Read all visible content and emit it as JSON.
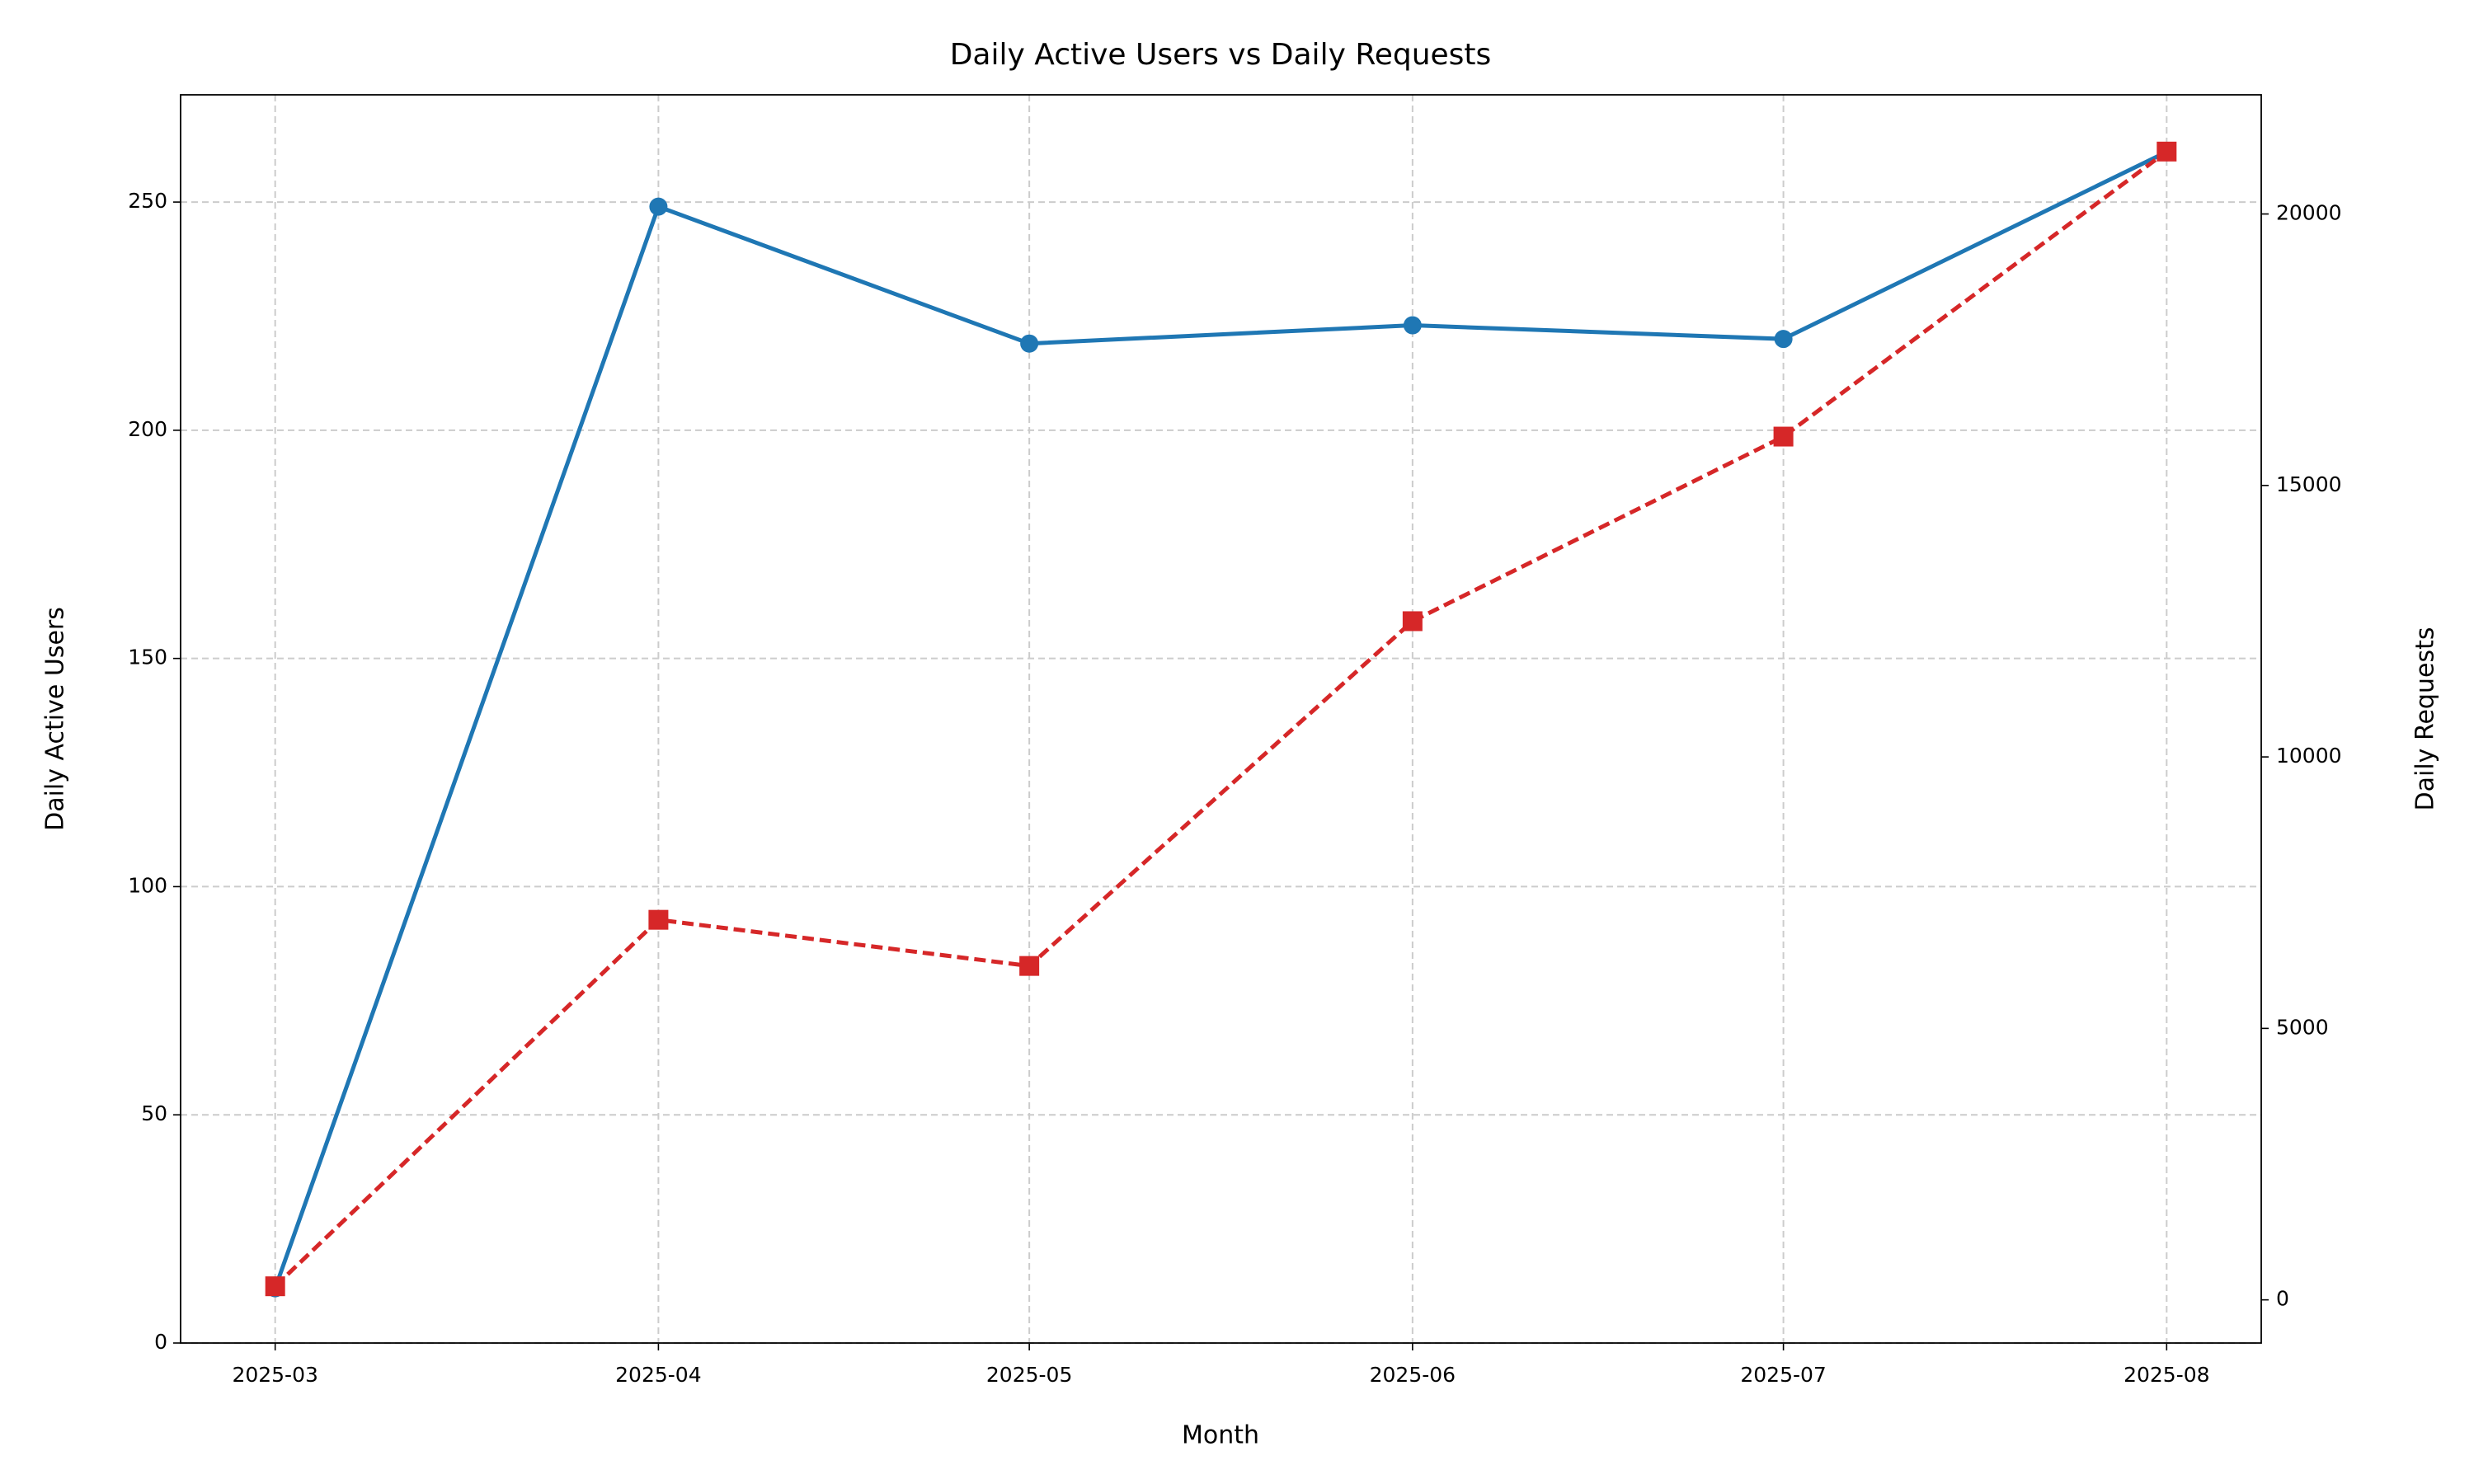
{
  "chart_data": {
    "type": "line",
    "title": "Daily Active Users vs Daily Requests",
    "x_label": "Month",
    "y_label": "Daily Active Users",
    "y2_label": "Daily Requests",
    "x": [
      "2025-03",
      "2025-04",
      "2025-05",
      "2025-06",
      "2025-07",
      "2025-08"
    ],
    "series": [
      {
        "name": "Daily Active Users",
        "color": "#1f77b4",
        "marker": "circle",
        "dash": false,
        "values": [
          12,
          249,
          219,
          223,
          220,
          261
        ]
      },
      {
        "name": "Daily Requests",
        "color": "#d62728",
        "marker": "square",
        "dash": true,
        "axis": "y2",
        "values": [
          250,
          7000,
          6150,
          12500,
          15900,
          21150
        ]
      }
    ],
    "ylim": [
      0,
      273.5
    ],
    "yticks": [
      0,
      50,
      100,
      150,
      200,
      250
    ],
    "y2lim": [
      -795,
      22195
    ],
    "y2ticks": [
      0,
      5000,
      10000,
      15000,
      20000
    ],
    "grid": true
  }
}
